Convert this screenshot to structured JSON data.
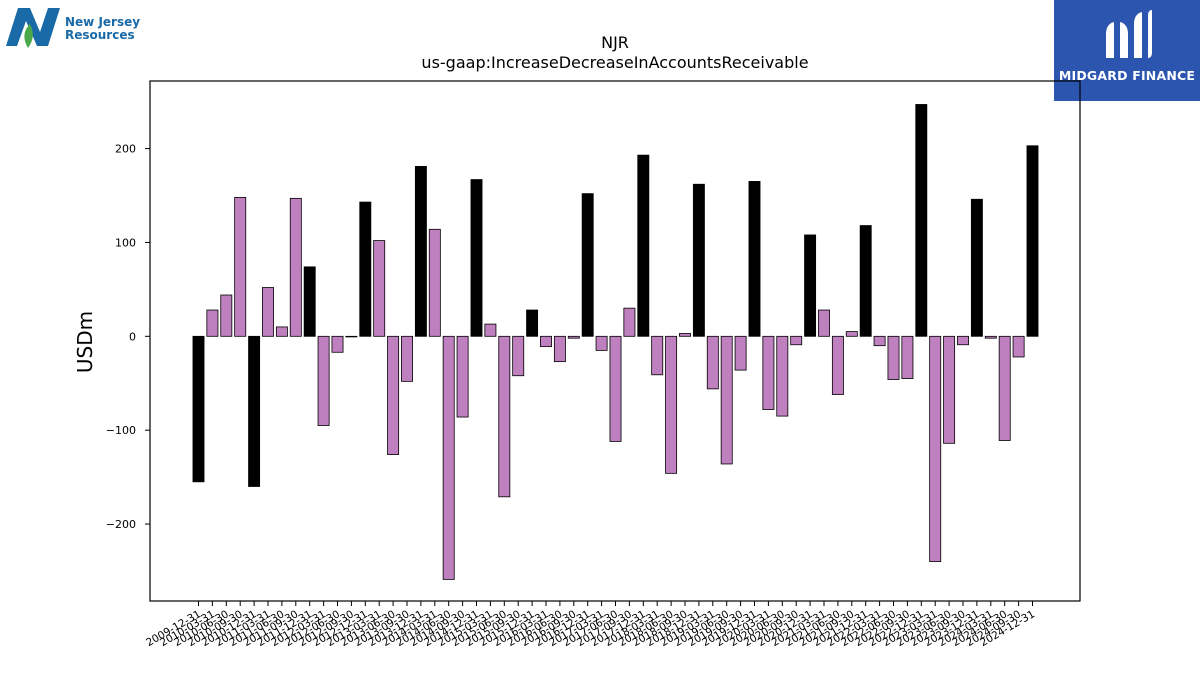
{
  "logos": {
    "left_line1": "New Jersey",
    "left_line2": "Resources",
    "right_name": "MIDGARD FINANCE"
  },
  "colors": {
    "annual": "#000000",
    "quarterly": "#bf80bf",
    "left_logo_blue": "#1a6aa8",
    "left_logo_green": "#4aa84a",
    "right_logo_bg": "#2c55b0"
  },
  "chart_data": {
    "type": "bar",
    "title": "NJR",
    "subtitle": "us-gaap:IncreaseDecreaseInAccountsReceivable",
    "xlabel": "",
    "ylabel": "USDm",
    "ylim": [
      -282,
      272
    ],
    "yticks": [
      -200,
      -100,
      0,
      100,
      200
    ],
    "ytick_labels": [
      "−200",
      "−100",
      "0",
      "100",
      "200"
    ],
    "grid": false,
    "legend": "none",
    "categories": [
      "2009-12-31",
      "2010-03-31",
      "2010-06-30",
      "2010-09-30",
      "2010-12-31",
      "2011-03-31",
      "2011-06-30",
      "2011-09-30",
      "2011-12-31",
      "2012-03-31",
      "2012-06-30",
      "2012-09-30",
      "2012-12-31",
      "2013-03-31",
      "2013-06-30",
      "2013-09-30",
      "2013-12-31",
      "2014-03-31",
      "2014-06-30",
      "2014-09-30",
      "2014-12-31",
      "2015-03-31",
      "2015-06-30",
      "2015-09-30",
      "2015-12-31",
      "2016-03-31",
      "2016-06-30",
      "2016-09-30",
      "2016-12-31",
      "2017-03-31",
      "2017-06-30",
      "2017-09-30",
      "2017-12-31",
      "2018-03-31",
      "2018-06-30",
      "2018-09-30",
      "2018-12-31",
      "2019-03-31",
      "2019-06-30",
      "2019-09-30",
      "2019-12-31",
      "2020-03-31",
      "2020-06-30",
      "2020-09-30",
      "2020-12-31",
      "2021-03-31",
      "2021-06-30",
      "2021-09-30",
      "2021-12-31",
      "2022-03-31",
      "2022-06-30",
      "2022-09-30",
      "2022-12-31",
      "2023-03-31",
      "2023-06-30",
      "2023-09-30",
      "2023-12-31",
      "2024-03-31",
      "2024-06-30",
      "2024-09-30",
      "2024-12-31"
    ],
    "values": [
      -155,
      28,
      44,
      148,
      -160,
      52,
      10,
      147,
      74,
      -95,
      -17,
      0,
      143,
      102,
      -126,
      -48,
      181,
      114,
      -259,
      -86,
      167,
      13,
      -171,
      -42,
      28,
      -11,
      -27,
      -2,
      152,
      -15,
      -112,
      30,
      193,
      -41,
      -146,
      3,
      162,
      -56,
      -136,
      -36,
      165,
      -78,
      -85,
      -9,
      108,
      28,
      -62,
      5,
      118,
      -10,
      -46,
      -45,
      247,
      -240,
      -114,
      -9,
      146,
      -2,
      -111,
      -22,
      203
    ],
    "annual_flags": [
      1,
      0,
      0,
      0,
      1,
      0,
      0,
      0,
      1,
      0,
      0,
      0,
      1,
      0,
      0,
      0,
      1,
      0,
      0,
      0,
      1,
      0,
      0,
      0,
      1,
      0,
      0,
      0,
      1,
      0,
      0,
      0,
      1,
      0,
      0,
      0,
      1,
      0,
      0,
      0,
      1,
      0,
      0,
      0,
      1,
      0,
      0,
      0,
      1,
      0,
      0,
      0,
      1,
      0,
      0,
      0,
      1,
      0,
      0,
      0,
      1
    ]
  }
}
